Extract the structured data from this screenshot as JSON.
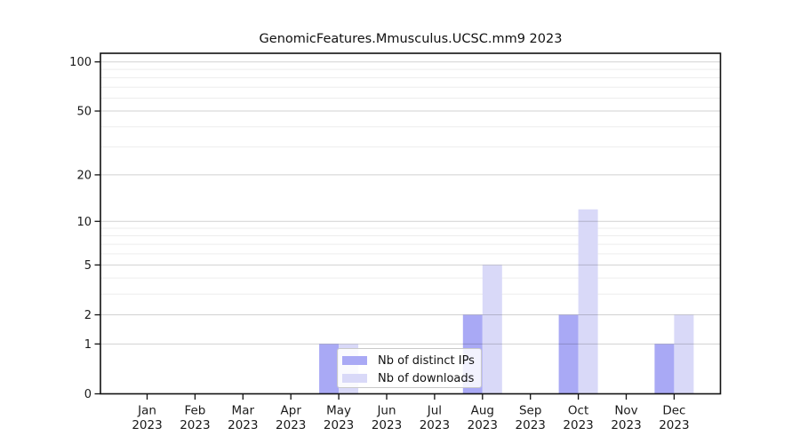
{
  "chart_data": {
    "type": "bar",
    "title": "GenomicFeatures.Mmusculus.UCSC.mm9 2023",
    "year": "2023",
    "months": [
      "Jan",
      "Feb",
      "Mar",
      "Apr",
      "May",
      "Jun",
      "Jul",
      "Aug",
      "Sep",
      "Oct",
      "Nov",
      "Dec"
    ],
    "categories": [
      "Jan 2023",
      "Feb 2023",
      "Mar 2023",
      "Apr 2023",
      "May 2023",
      "Jun 2023",
      "Jul 2023",
      "Aug 2023",
      "Sep 2023",
      "Oct 2023",
      "Nov 2023",
      "Dec 2023"
    ],
    "series": [
      {
        "name": "Nb of distinct IPs",
        "color": "#a9a9f5",
        "values": [
          0,
          0,
          0,
          0,
          1,
          0,
          0,
          2,
          0,
          2,
          0,
          1
        ]
      },
      {
        "name": "Nb of downloads",
        "color": "#d9d9f8",
        "values": [
          0,
          0,
          0,
          0,
          1,
          0,
          0,
          5,
          0,
          12,
          0,
          2
        ]
      }
    ],
    "y_axis": {
      "scale": "log10(1+x)",
      "tick_labels": [
        "0",
        "1",
        "2",
        "5",
        "10",
        "20",
        "50",
        "100"
      ],
      "major_ticks": [
        0,
        1,
        2,
        5,
        10,
        20,
        50,
        100
      ],
      "minor_gridlines": [
        3,
        4,
        6,
        7,
        8,
        9,
        30,
        40,
        60,
        70,
        80,
        90
      ],
      "ylim": [
        0,
        113
      ]
    },
    "legend": {
      "entries": [
        "Nb of distinct IPs",
        "Nb of downloads"
      ],
      "position": "lower center"
    },
    "style": {
      "axis_color": "#111111",
      "major_grid_color": "rgba(0,0,0,0.18)",
      "minor_grid_color": "#ededed",
      "tick_label_color": "#1a1a1a",
      "title_color": "#111111",
      "background": "#ffffff"
    }
  }
}
